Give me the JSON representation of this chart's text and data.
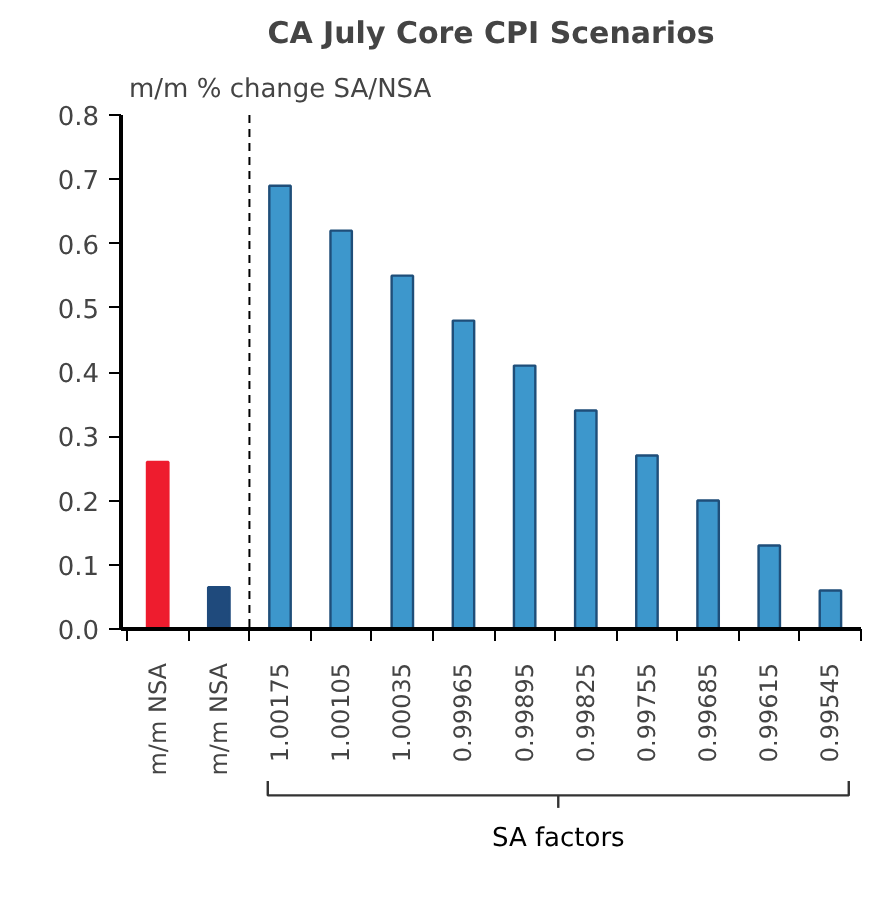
{
  "chart_data": {
    "type": "bar",
    "title": "CA July Core CPI Scenarios",
    "ylabel": "m/m % change SA/NSA",
    "categories": [
      "m/m NSA",
      "m/m NSA",
      "1.00175",
      "1.00105",
      "1.00035",
      "0.99965",
      "0.99895",
      "0.99825",
      "0.99755",
      "0.99685",
      "0.99615",
      "0.99545"
    ],
    "values": [
      0.26,
      0.065,
      0.69,
      0.62,
      0.55,
      0.48,
      0.41,
      0.34,
      0.27,
      0.2,
      0.13,
      0.06
    ],
    "colors": [
      "#ee1c2e",
      "#1f4a7c",
      "#3d97cc",
      "#3d97cc",
      "#3d97cc",
      "#3d97cc",
      "#3d97cc",
      "#3d97cc",
      "#3d97cc",
      "#3d97cc",
      "#3d97cc",
      "#3d97cc"
    ],
    "ylim": [
      0,
      0.8
    ],
    "yticks": [
      {
        "value": 0,
        "label": "0.0"
      },
      0.1,
      0.2,
      0.3,
      0.4,
      0.5,
      0.6,
      0.7,
      0.8
    ],
    "annotations": [
      "SA factors"
    ],
    "grid": false
  }
}
